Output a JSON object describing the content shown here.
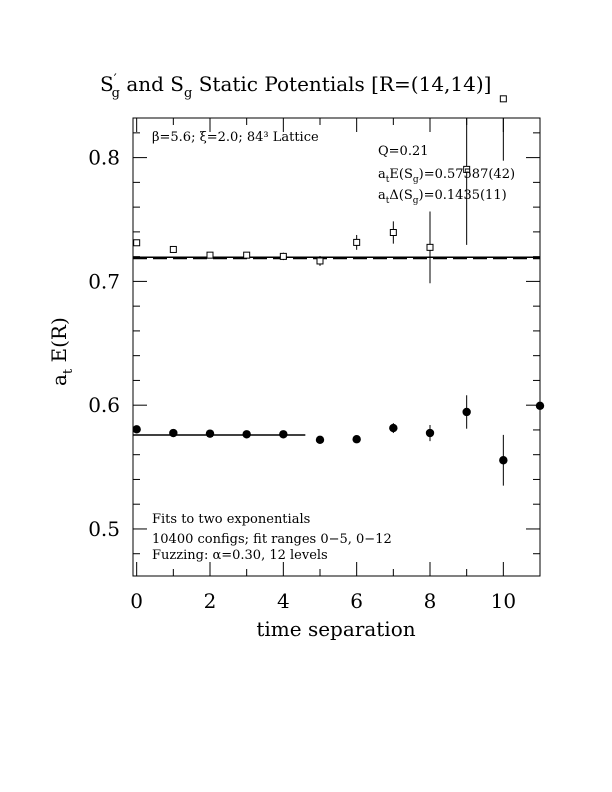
{
  "chart_data": {
    "type": "scatter",
    "title_parts": [
      "S",
      "′",
      "g",
      " and S",
      "g",
      " Static Potentials [R=(14,14)]"
    ],
    "xlabel": "time separation",
    "ylabel_main": "a",
    "ylabel_sub": "t",
    "ylabel_rest": " E(R)",
    "xlim": [
      -0.1,
      11.0
    ],
    "ylim": [
      0.462,
      0.832
    ],
    "xticks": [
      0,
      2,
      4,
      6,
      8,
      10
    ],
    "xtick_labels": [
      "0",
      "2",
      "4",
      "6",
      "8",
      "10"
    ],
    "yticks": [
      0.5,
      0.6,
      0.7,
      0.8
    ],
    "ytick_labels": [
      "0.5",
      "0.6",
      "0.7",
      "0.8"
    ],
    "grid": false,
    "annotations": {
      "lattice": "β=5.6; ξ=2.0; 84³ Lattice",
      "q": "Q=0.21",
      "energy_prefix": "a",
      "energy_sub": "t",
      "energy_text": "E(S",
      "energy_sub2": "g",
      "energy_value": ")=0.57587(42)",
      "delta_prefix": "a",
      "delta_sub": "t",
      "delta_text": "Δ(S",
      "delta_sub2": "g",
      "delta_value": ")=0.1435(11)",
      "fit_line1": "Fits to two exponentials",
      "fit_line2": "10400 configs; fit ranges 0−5, 0−12",
      "fit_line3": "Fuzzing: α=0.30, 12 levels"
    },
    "series": [
      {
        "marker": "open-square",
        "x": [
          0,
          1,
          2,
          3,
          4,
          5,
          6,
          7,
          8,
          9,
          10
        ],
        "y": [
          0.7312,
          0.7258,
          0.7212,
          0.7212,
          0.7202,
          0.7165,
          0.7315,
          0.7395,
          0.7275,
          0.7905,
          0.8475
        ],
        "err": [
          0.0015,
          0.002,
          0.002,
          0.0025,
          0.003,
          0.004,
          0.006,
          0.009,
          0.029,
          0.061,
          0.05
        ]
      },
      {
        "marker": "filled-circle",
        "x": [
          0,
          1,
          2,
          3,
          4,
          5,
          6,
          7,
          8,
          9,
          10,
          11
        ],
        "y": [
          0.5805,
          0.5775,
          0.577,
          0.5765,
          0.5765,
          0.572,
          0.5725,
          0.5815,
          0.5775,
          0.5945,
          0.5555,
          0.5995
        ],
        "err": [
          0.0015,
          0.0015,
          0.0015,
          0.002,
          0.002,
          0.002,
          0.002,
          0.004,
          0.0065,
          0.0135,
          0.0205,
          0.0345
        ]
      }
    ],
    "fits": [
      {
        "style": "solid",
        "x": [
          -0.1,
          11.0
        ],
        "y": [
          0.7195,
          0.7195
        ]
      },
      {
        "style": "dashed",
        "x": [
          -0.1,
          11.0
        ],
        "y": [
          0.7185,
          0.7185
        ]
      },
      {
        "style": "solid",
        "x": [
          -0.1,
          4.6
        ],
        "y": [
          0.5759,
          0.5759
        ]
      }
    ]
  }
}
